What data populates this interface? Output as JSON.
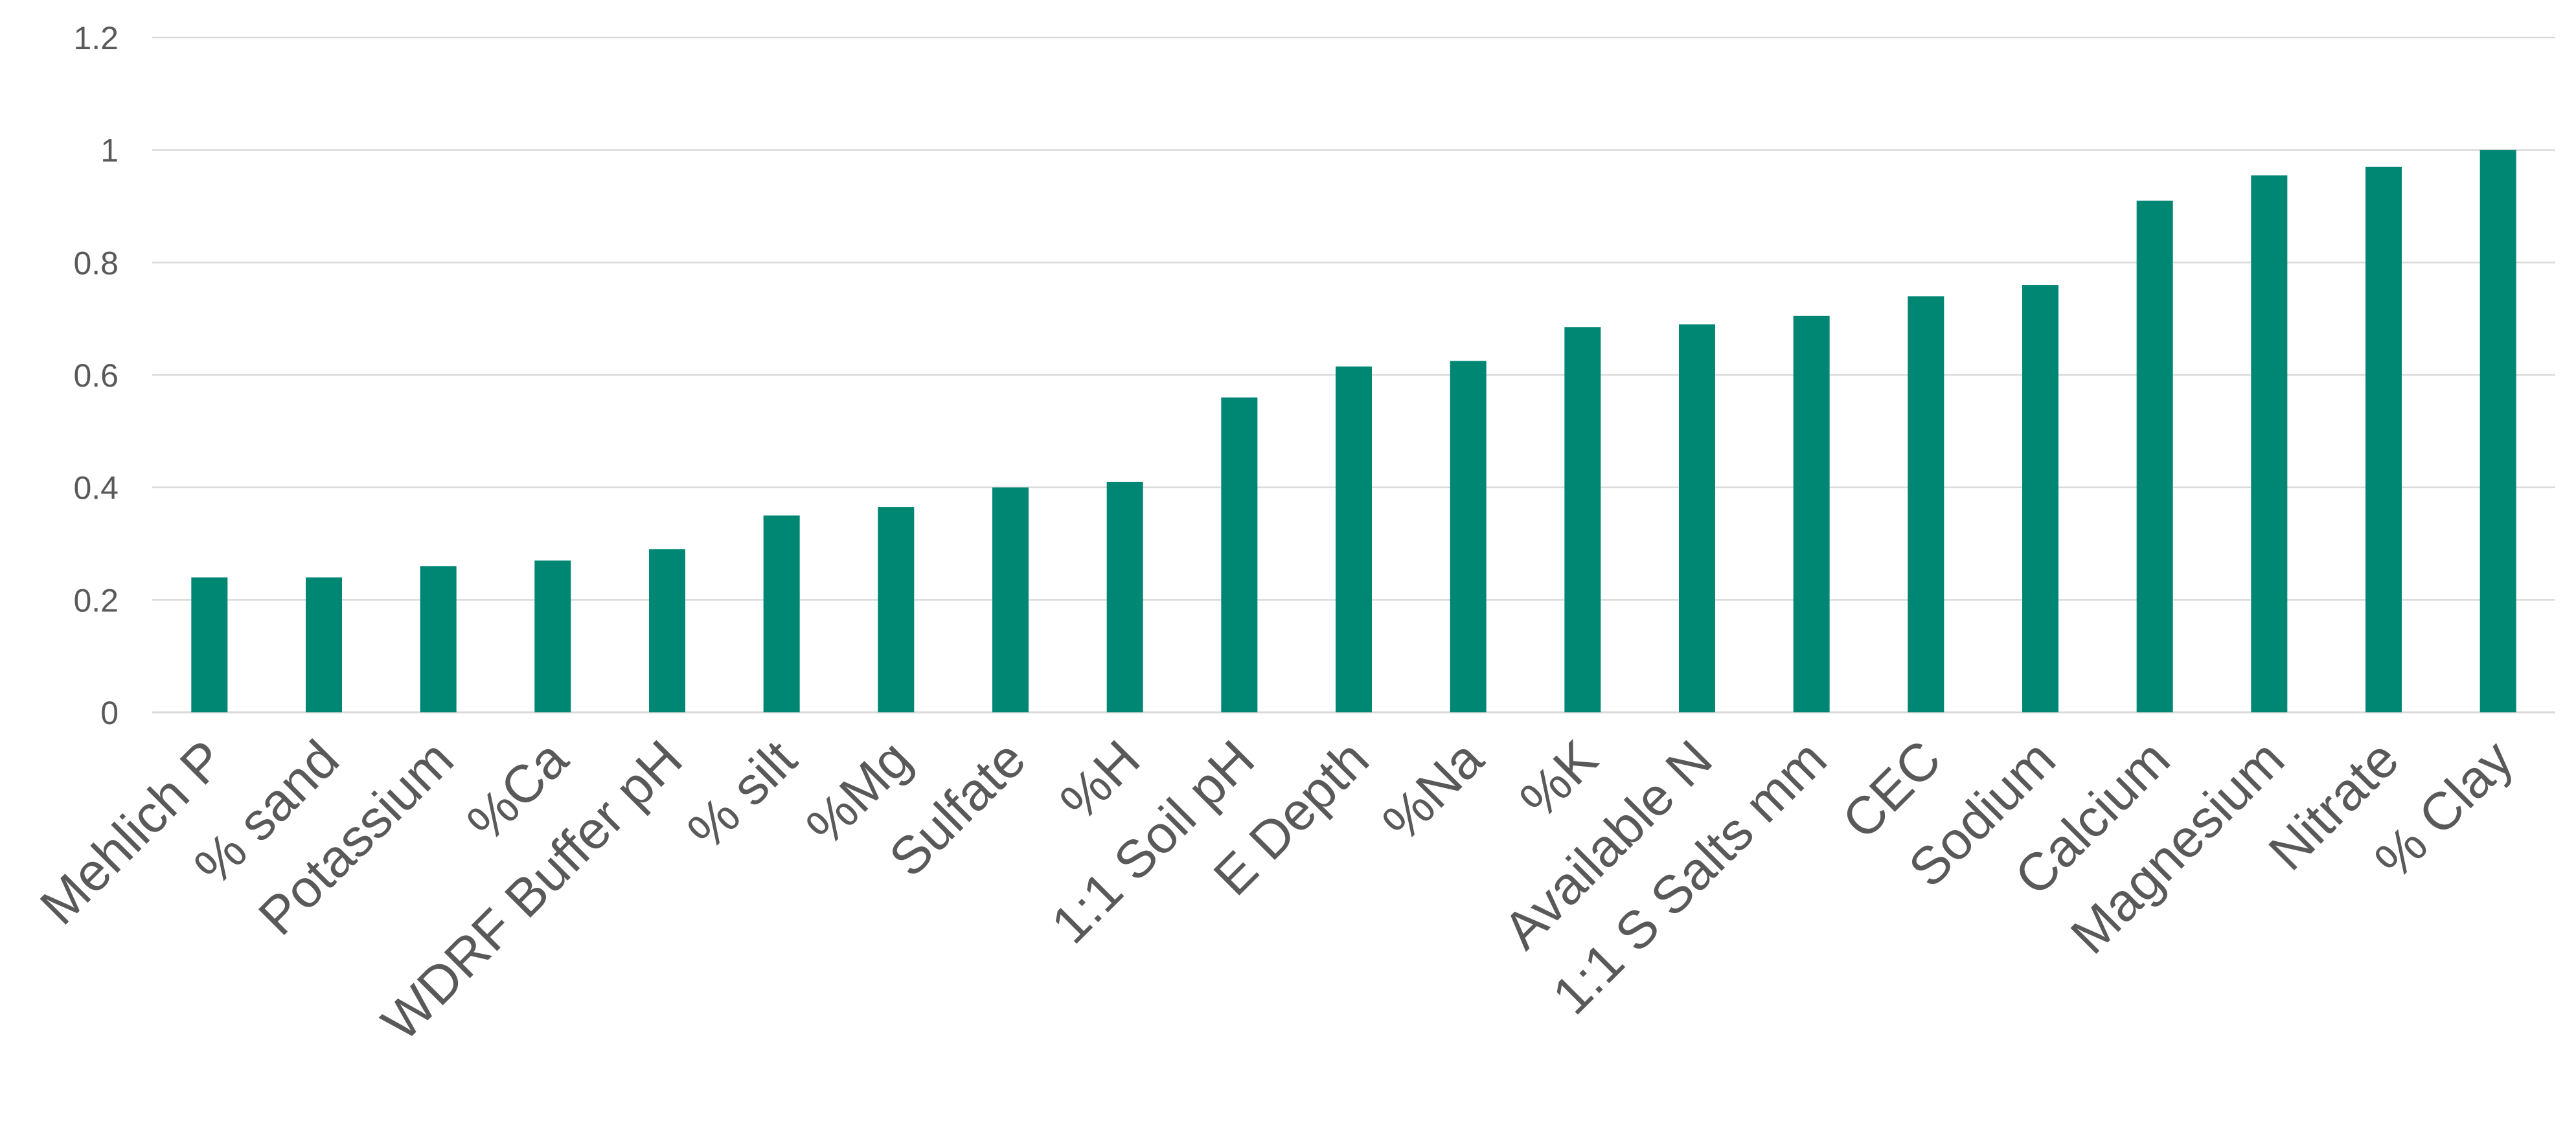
{
  "chart_data": {
    "type": "bar",
    "title": "",
    "xlabel": "",
    "ylabel": "",
    "ylim": [
      0,
      1.2
    ],
    "yticks": [
      "0",
      "0.2",
      "0.4",
      "0.6",
      "0.8",
      "1",
      "1.2"
    ],
    "grid": true,
    "legend": "none",
    "categories": [
      "Mehlich P",
      "% sand",
      "Potassium",
      "%Ca",
      "WDRF Buffer pH",
      "% silt",
      "%Mg",
      "Sulfate",
      "%H",
      "1:1 Soil pH",
      "E Depth",
      "%Na",
      "%K",
      "Available N",
      "1:1 S Salts mm",
      "CEC",
      "Sodium",
      "Calcium",
      "Magnesium",
      "Nitrate",
      "% Clay"
    ],
    "values": [
      0.24,
      0.24,
      0.26,
      0.27,
      0.29,
      0.35,
      0.365,
      0.4,
      0.41,
      0.56,
      0.615,
      0.625,
      0.685,
      0.69,
      0.705,
      0.74,
      0.76,
      0.91,
      0.955,
      0.97,
      1.0
    ],
    "colors": {
      "bar": "#008774"
    }
  }
}
